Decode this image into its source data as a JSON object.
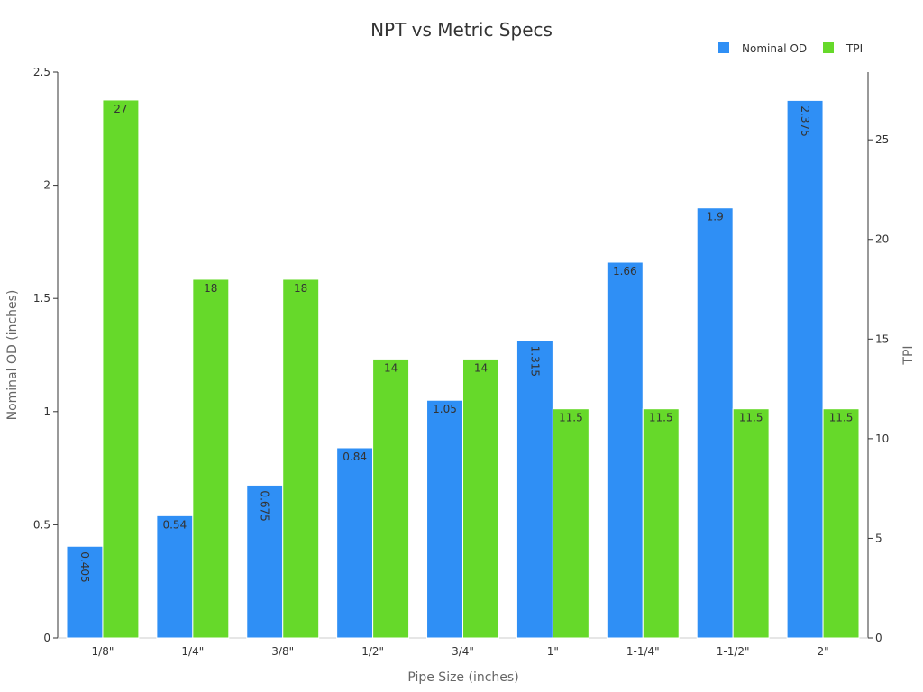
{
  "chart_data": {
    "type": "bar",
    "title": "NPT vs Metric Specs",
    "xlabel": "Pipe Size (inches)",
    "ylabel": "Nominal OD (inches)",
    "y2label": "TPI",
    "categories": [
      "1/8\"",
      "1/4\"",
      "3/8\"",
      "1/2\"",
      "3/4\"",
      "1\"",
      "1-1/4\"",
      "1-1/2\"",
      "2\""
    ],
    "series": [
      {
        "name": "Nominal OD",
        "axis": "left",
        "color": "#2f8ff5",
        "values": [
          0.405,
          0.54,
          0.675,
          0.84,
          1.05,
          1.315,
          1.66,
          1.9,
          2.375
        ],
        "labels": [
          "0.405",
          "0.54",
          "0.675",
          "0.84",
          "1.05",
          "1.315",
          "1.66",
          "1.9",
          "2.375"
        ]
      },
      {
        "name": "TPI",
        "axis": "right",
        "color": "#66d92a",
        "values": [
          27,
          18,
          18,
          14,
          14,
          11.5,
          11.5,
          11.5,
          11.5
        ],
        "labels": [
          "27",
          "18",
          "18",
          "14",
          "14",
          "11.5",
          "11.5",
          "11.5",
          "11.5"
        ]
      }
    ],
    "ylim": [
      0,
      2.5
    ],
    "yticks": [
      "0",
      "0.5",
      "1",
      "1.5",
      "2",
      "2.5"
    ],
    "y2lim": [
      0,
      28.4
    ],
    "y2ticks": [
      "0",
      "5",
      "10",
      "15",
      "20",
      "25"
    ],
    "legend": "top-right",
    "grid": false
  }
}
